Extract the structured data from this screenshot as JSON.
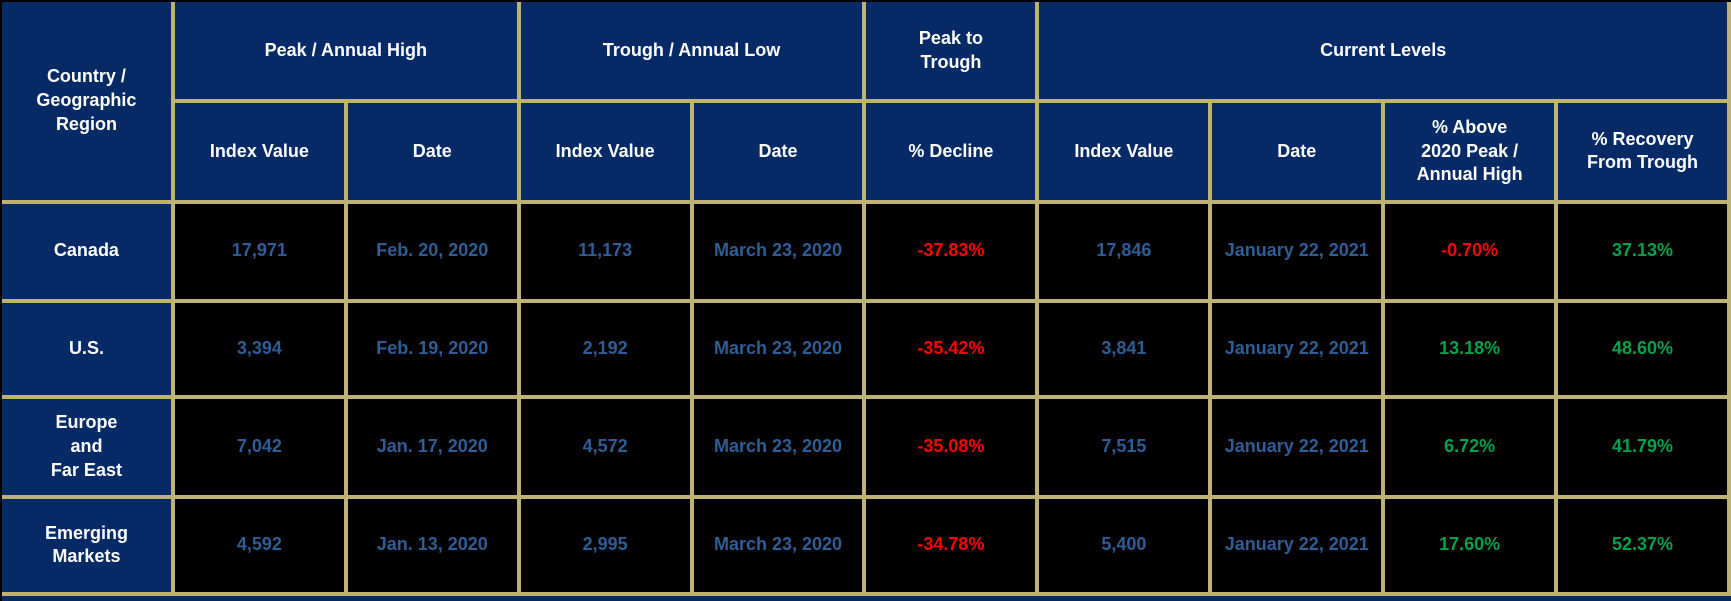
{
  "colors": {
    "navy": "#052A66",
    "gold": "#BEB374",
    "cell_bg": "#000000",
    "header_text": "#FFFFFF",
    "value_blue": "#2F5D96",
    "negative_red": "#FF0000",
    "positive_green": "#00A14B"
  },
  "header": {
    "region_column": "Country /\nGeographic\nRegion",
    "groups": [
      {
        "label": "Peak / Annual High",
        "span": 2
      },
      {
        "label": "Trough / Annual Low",
        "span": 2
      },
      {
        "label": "Peak to\nTrough",
        "span": 1
      },
      {
        "label": "Current Levels",
        "span": 4
      }
    ],
    "subheaders": [
      "Index Value",
      "Date",
      "Index Value",
      "Date",
      "% Decline",
      "Index Value",
      "Date",
      "% Above\n2020 Peak /\nAnnual High",
      "% Recovery\nFrom Trough"
    ]
  },
  "rows": [
    {
      "region": "Canada",
      "cells": [
        {
          "value": "17,971",
          "tone": "blue"
        },
        {
          "value": "Feb. 20, 2020",
          "tone": "blue"
        },
        {
          "value": "11,173",
          "tone": "blue"
        },
        {
          "value": "March 23, 2020",
          "tone": "blue"
        },
        {
          "value": "-37.83%",
          "tone": "red"
        },
        {
          "value": "17,846",
          "tone": "blue"
        },
        {
          "value": "January 22, 2021",
          "tone": "blue"
        },
        {
          "value": "-0.70%",
          "tone": "red"
        },
        {
          "value": "37.13%",
          "tone": "green"
        }
      ]
    },
    {
      "region": "U.S.",
      "cells": [
        {
          "value": "3,394",
          "tone": "blue"
        },
        {
          "value": "Feb. 19, 2020",
          "tone": "blue"
        },
        {
          "value": "2,192",
          "tone": "blue"
        },
        {
          "value": "March 23, 2020",
          "tone": "blue"
        },
        {
          "value": "-35.42%",
          "tone": "red"
        },
        {
          "value": "3,841",
          "tone": "blue"
        },
        {
          "value": "January 22, 2021",
          "tone": "blue"
        },
        {
          "value": "13.18%",
          "tone": "green"
        },
        {
          "value": "48.60%",
          "tone": "green"
        }
      ]
    },
    {
      "region": "Europe\nand\nFar East",
      "cells": [
        {
          "value": "7,042",
          "tone": "blue"
        },
        {
          "value": "Jan. 17, 2020",
          "tone": "blue"
        },
        {
          "value": "4,572",
          "tone": "blue"
        },
        {
          "value": "March 23, 2020",
          "tone": "blue"
        },
        {
          "value": "-35.08%",
          "tone": "red"
        },
        {
          "value": "7,515",
          "tone": "blue"
        },
        {
          "value": "January 22, 2021",
          "tone": "blue"
        },
        {
          "value": "6.72%",
          "tone": "green"
        },
        {
          "value": "41.79%",
          "tone": "green"
        }
      ]
    },
    {
      "region": "Emerging\nMarkets",
      "cells": [
        {
          "value": "4,592",
          "tone": "blue"
        },
        {
          "value": "Jan. 13, 2020",
          "tone": "blue"
        },
        {
          "value": "2,995",
          "tone": "blue"
        },
        {
          "value": "March 23, 2020",
          "tone": "blue"
        },
        {
          "value": "-34.78%",
          "tone": "red"
        },
        {
          "value": "5,400",
          "tone": "blue"
        },
        {
          "value": "January 22, 2021",
          "tone": "blue"
        },
        {
          "value": "17.60%",
          "tone": "green"
        },
        {
          "value": "52.37%",
          "tone": "green"
        }
      ]
    }
  ]
}
